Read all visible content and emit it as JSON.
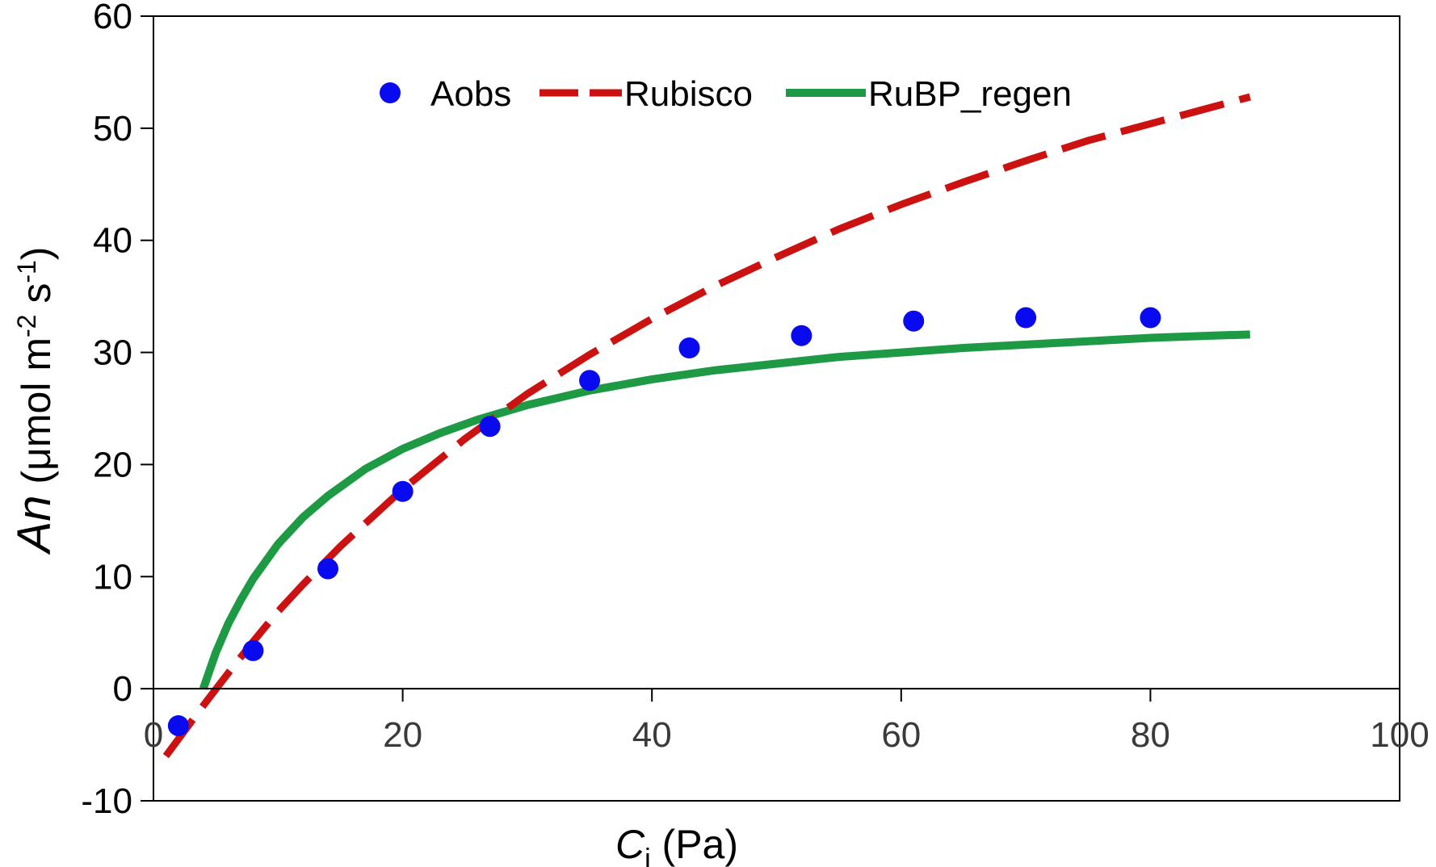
{
  "chart_data": {
    "type": "line",
    "xlabel": {
      "main": "C",
      "sub": "i",
      "rest": " (Pa)"
    },
    "ylabel": {
      "italic": "An",
      "rest1": " (μmol m",
      "sup1": "-2",
      "rest2": " s",
      "sup2": "-1",
      "rest3": ")"
    },
    "xlim": [
      0,
      100
    ],
    "ylim": [
      -10,
      60
    ],
    "x_ticks": [
      0,
      20,
      40,
      60,
      80,
      100
    ],
    "y_ticks": [
      -10,
      0,
      10,
      20,
      30,
      40,
      50,
      60
    ],
    "x_tick_labels": [
      "0",
      "20",
      "40",
      "60",
      "80",
      "100"
    ],
    "y_tick_labels": [
      "-10",
      "0",
      "10",
      "20",
      "30",
      "40",
      "50",
      "60"
    ],
    "grid": false,
    "legend_position": "top-center",
    "legend": [
      {
        "label": "Aobs",
        "marker": "circle"
      },
      {
        "label": "Rubisco",
        "style": "dashed"
      },
      {
        "label": "RuBP_regen",
        "style": "solid"
      }
    ],
    "series": [
      {
        "name": "Aobs",
        "kind": "scatter",
        "color": "#0a0af0",
        "x": [
          2,
          8,
          14,
          20,
          27,
          35,
          43,
          52,
          61,
          70,
          80
        ],
        "y": [
          -3.3,
          3.4,
          10.7,
          17.6,
          23.4,
          27.5,
          30.4,
          31.5,
          32.8,
          33.1,
          33.1
        ]
      },
      {
        "name": "Rubisco",
        "kind": "line",
        "style": "dashed",
        "color": "#cc1111",
        "x": [
          1,
          4,
          6,
          8,
          10,
          12,
          15,
          20,
          25,
          30,
          35,
          40,
          45,
          50,
          55,
          60,
          65,
          70,
          75,
          80,
          85,
          88
        ],
        "y": [
          -6,
          -1.5,
          1.4,
          4.2,
          6.9,
          9.3,
          12.7,
          17.8,
          22.3,
          26.3,
          29.8,
          33.0,
          35.9,
          38.5,
          41.0,
          43.2,
          45.2,
          47.1,
          48.9,
          50.4,
          51.9,
          52.8
        ]
      },
      {
        "name": "RuBP_regen",
        "kind": "line",
        "style": "solid",
        "color": "#1e9a44",
        "x": [
          4,
          5,
          6,
          7,
          8,
          10,
          12,
          14,
          17,
          20,
          23,
          26,
          30,
          35,
          40,
          45,
          50,
          55,
          60,
          65,
          70,
          75,
          80,
          85,
          88
        ],
        "y": [
          0,
          3.2,
          5.8,
          7.9,
          9.8,
          12.9,
          15.3,
          17.2,
          19.6,
          21.4,
          22.8,
          24.0,
          25.3,
          26.6,
          27.6,
          28.4,
          29.0,
          29.6,
          30.0,
          30.4,
          30.7,
          31.0,
          31.3,
          31.5,
          31.6
        ]
      }
    ]
  }
}
